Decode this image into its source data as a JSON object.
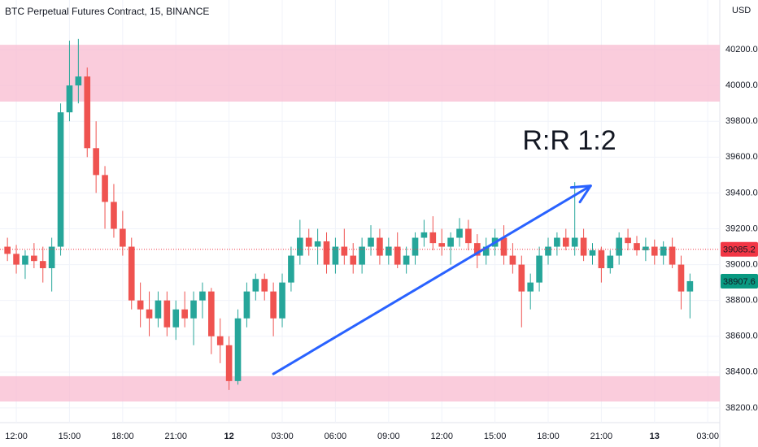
{
  "chart_data": {
    "type": "candlestick",
    "title": "BTC Perpetual Futures Contract, 15, BINANCE",
    "currency": "USD",
    "annotation": "R:R 1:2",
    "up_color": "#26a69a",
    "down_color": "#ef5350",
    "zone_color": "#f8bbd0",
    "arrow_color": "#2962ff",
    "grid": true,
    "xlim": [
      11.08,
      51.68
    ],
    "ylim": [
      38118,
      40477
    ],
    "xticks": [
      {
        "value": 12,
        "label": "12:00"
      },
      {
        "value": 15,
        "label": "15:00"
      },
      {
        "value": 18,
        "label": "18:00"
      },
      {
        "value": 21,
        "label": "21:00"
      },
      {
        "value": 24,
        "label": "12"
      },
      {
        "value": 27,
        "label": "03:00"
      },
      {
        "value": 30,
        "label": "06:00"
      },
      {
        "value": 33,
        "label": "09:00"
      },
      {
        "value": 36,
        "label": "12:00"
      },
      {
        "value": 39,
        "label": "15:00"
      },
      {
        "value": 42,
        "label": "18:00"
      },
      {
        "value": 45,
        "label": "21:00"
      },
      {
        "value": 48,
        "label": "13"
      },
      {
        "value": 51,
        "label": "03:00"
      }
    ],
    "yticks": [
      {
        "value": 38200,
        "label": "38200.0"
      },
      {
        "value": 38400,
        "label": "38400.0"
      },
      {
        "value": 38600,
        "label": "38600.0"
      },
      {
        "value": 38800,
        "label": "38800.0"
      },
      {
        "value": 39000,
        "label": "39000.0"
      },
      {
        "value": 39200,
        "label": "39200.0"
      },
      {
        "value": 39400,
        "label": "39400.0"
      },
      {
        "value": 39600,
        "label": "39600.0"
      },
      {
        "value": 39800,
        "label": "39800.0"
      },
      {
        "value": 40000,
        "label": "40000.0"
      },
      {
        "value": 40200,
        "label": "40200.0"
      }
    ],
    "zones": [
      [
        39910,
        40227
      ],
      [
        38236,
        38377
      ]
    ],
    "arrow": {
      "x": [
        26.5,
        44.4
      ],
      "y": [
        38390,
        39440
      ]
    },
    "price_labels": [
      {
        "value": 39085.2,
        "color": "#f23645",
        "dotted": true
      },
      {
        "value": 38907.6,
        "color": "#089981"
      }
    ],
    "candles": {
      "x": [
        11.5,
        12,
        12.5,
        13,
        13.5,
        14,
        14.5,
        15,
        15.5,
        16,
        16.5,
        17,
        17.5,
        18,
        18.5,
        19,
        19.5,
        20,
        20.5,
        21,
        21.5,
        22,
        22.5,
        23,
        23.5,
        24,
        24.5,
        25,
        25.5,
        26,
        26.5,
        27,
        27.5,
        28,
        28.5,
        29,
        29.5,
        30,
        30.5,
        31,
        31.5,
        32,
        32.5,
        33,
        33.5,
        34,
        34.5,
        35,
        35.5,
        36,
        36.5,
        37,
        37.5,
        38,
        38.5,
        39,
        39.5,
        40,
        40.5,
        41,
        41.5,
        42,
        42.5,
        43,
        43.5,
        44,
        44.5,
        45,
        45.5,
        46,
        46.5,
        47,
        47.5,
        48,
        48.5,
        49,
        49.5,
        50
      ],
      "open": [
        39100,
        39060,
        39000,
        39050,
        39020,
        38980,
        39100,
        39850,
        40000,
        40050,
        39650,
        39500,
        39350,
        39200,
        39100,
        38800,
        38750,
        38700,
        38800,
        38650,
        38750,
        38700,
        38800,
        38850,
        38600,
        38550,
        38350,
        38700,
        38850,
        38920,
        38850,
        38700,
        38900,
        39050,
        39150,
        39100,
        39130,
        39000,
        39100,
        39050,
        39000,
        39100,
        39150,
        39050,
        39100,
        39000,
        39050,
        39150,
        39180,
        39120,
        39100,
        39150,
        39200,
        39120,
        39050,
        39100,
        39150,
        39050,
        39000,
        38850,
        38900,
        39050,
        39100,
        39150,
        39100,
        39150,
        39050,
        39080,
        38980,
        39050,
        39150,
        39120,
        39080,
        39100,
        39050,
        39100,
        39000,
        38850
      ],
      "high": [
        39150,
        39110,
        39080,
        39120,
        39100,
        39150,
        39900,
        40250,
        40260,
        40100,
        39800,
        39550,
        39450,
        39300,
        39150,
        38900,
        38850,
        38850,
        38850,
        38800,
        38850,
        38850,
        38900,
        38870,
        38700,
        38600,
        38750,
        38900,
        38950,
        38950,
        38900,
        38950,
        39100,
        39250,
        39200,
        39200,
        39180,
        39150,
        39200,
        39120,
        39150,
        39220,
        39200,
        39150,
        39180,
        39100,
        39180,
        39250,
        39270,
        39200,
        39180,
        39260,
        39250,
        39170,
        39150,
        39200,
        39220,
        39120,
        39050,
        38950,
        39100,
        39150,
        39180,
        39200,
        39460,
        39200,
        39120,
        39100,
        39080,
        39180,
        39200,
        39160,
        39150,
        39140,
        39130,
        39150,
        39050,
        38950
      ],
      "low": [
        39020,
        38950,
        38920,
        38980,
        38900,
        38850,
        39050,
        39800,
        39900,
        39600,
        39400,
        39200,
        39150,
        39050,
        38750,
        38650,
        38600,
        38650,
        38600,
        38580,
        38650,
        38550,
        38700,
        38500,
        38450,
        38300,
        38330,
        38650,
        38800,
        38800,
        38600,
        38650,
        38850,
        39000,
        39050,
        39000,
        38950,
        38950,
        39000,
        38950,
        38950,
        39050,
        39000,
        39000,
        38980,
        38950,
        39000,
        39100,
        39080,
        39050,
        39000,
        39100,
        39080,
        38980,
        39000,
        39050,
        39000,
        38950,
        38650,
        38750,
        38850,
        39000,
        39050,
        39080,
        39050,
        39020,
        39000,
        38900,
        38950,
        39000,
        39080,
        39050,
        39020,
        39000,
        39000,
        38980,
        38750,
        38700
      ],
      "close": [
        39060,
        39000,
        39050,
        39020,
        38980,
        39100,
        39850,
        40000,
        40050,
        39650,
        39500,
        39350,
        39200,
        39100,
        38800,
        38750,
        38700,
        38800,
        38650,
        38750,
        38700,
        38800,
        38850,
        38600,
        38550,
        38350,
        38700,
        38850,
        38920,
        38850,
        38700,
        38900,
        39050,
        39150,
        39100,
        39130,
        39000,
        39100,
        39050,
        39000,
        39100,
        39150,
        39050,
        39100,
        39000,
        39050,
        39150,
        39180,
        39120,
        39100,
        39150,
        39200,
        39120,
        39050,
        39100,
        39150,
        39050,
        39000,
        38850,
        38900,
        39050,
        39100,
        39150,
        39100,
        39150,
        39050,
        39080,
        38980,
        39050,
        39150,
        39120,
        39080,
        39100,
        39050,
        39100,
        39000,
        38850,
        38907.6
      ]
    }
  }
}
